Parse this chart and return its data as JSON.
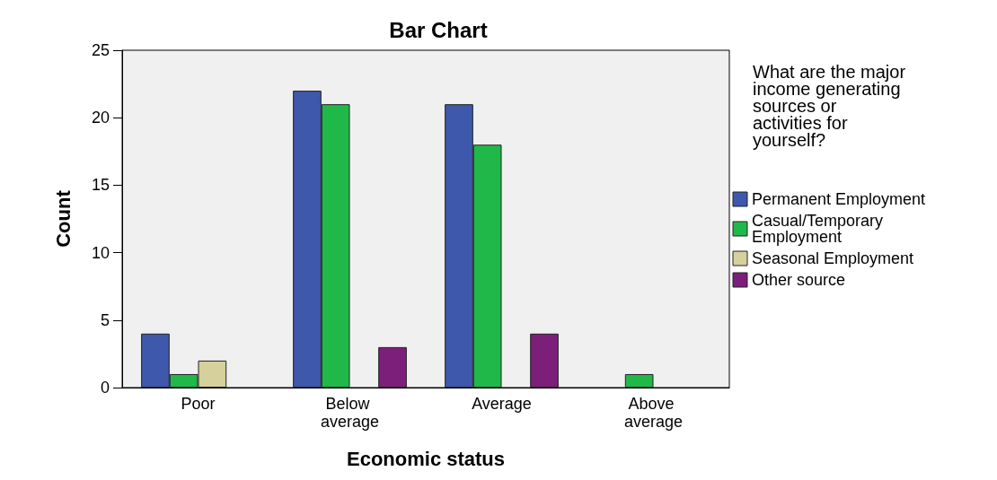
{
  "chart_data": {
    "type": "bar",
    "title": "Bar Chart",
    "xlabel": "Economic status",
    "ylabel": "Count",
    "legend_title": "What are the major income generating sources or activities for yourself?",
    "categories": [
      "Poor",
      "Below average",
      "Average",
      "Above average"
    ],
    "series": [
      {
        "name": "Permanent Employment",
        "color": "#3e58ac",
        "values": [
          4,
          22,
          21,
          null
        ]
      },
      {
        "name": "Casual/Temporary Employment",
        "color": "#21b84a",
        "values": [
          1,
          21,
          18,
          1
        ]
      },
      {
        "name": "Seasonal Employment",
        "color": "#d6d09c",
        "values": [
          2,
          null,
          null,
          null
        ]
      },
      {
        "name": "Other source",
        "color": "#7b1f7a",
        "values": [
          null,
          3,
          4,
          null
        ]
      }
    ],
    "ylim": [
      0,
      25
    ],
    "yticks": [
      0,
      5,
      10,
      15,
      20,
      25
    ],
    "grid": false,
    "legend": "right"
  }
}
